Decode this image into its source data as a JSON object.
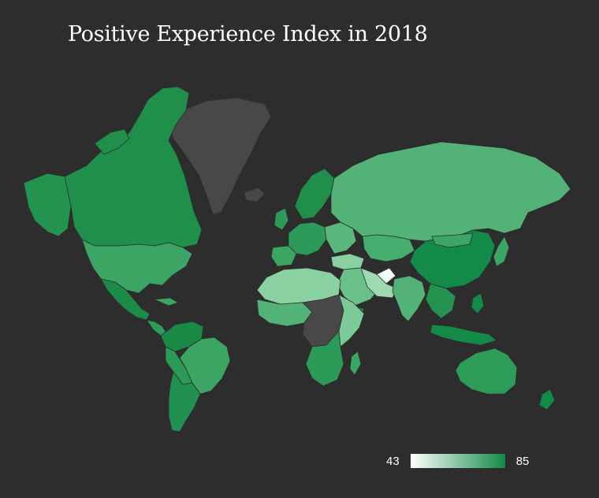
{
  "title": "Positive Experience Index in 2018",
  "legend": {
    "min_label": "43",
    "max_label": "85",
    "min_value": 43,
    "max_value": 85,
    "color_low": "#ffffff",
    "color_high": "#138a47"
  },
  "colors": {
    "background": "#2d2d2d",
    "no_data": "#484848",
    "border": "#2d2d2d"
  }
}
